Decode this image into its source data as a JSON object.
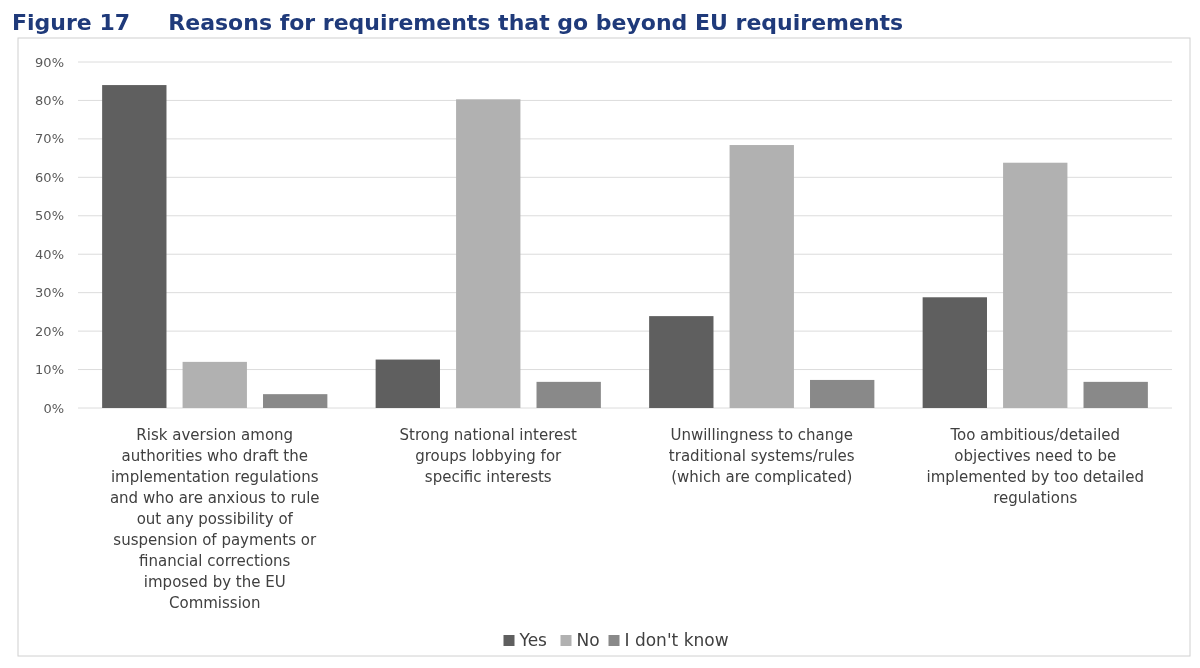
{
  "chart_data": {
    "type": "bar",
    "title": "Figure 17     Reasons for requirements that go beyond EU requirements",
    "categories": [
      "Risk aversion among authorities who draft the implementation regulations and who are anxious to rule out any possibility of suspension of payments or financial corrections imposed by the EU Commission",
      "Strong national interest groups lobbying for specific interests",
      "Unwillingness to change traditional systems/rules (which are complicated)",
      "Too ambitious/detailed objectives need to be implemented by too detailed regulations"
    ],
    "series": [
      {
        "name": "Yes",
        "color": "#5f5f5f",
        "values": [
          84.0,
          12.6,
          23.9,
          28.8
        ]
      },
      {
        "name": "No",
        "color": "#b1b1b1",
        "values": [
          12.0,
          80.3,
          68.4,
          63.8
        ]
      },
      {
        "name": "I don't know",
        "color": "#898989",
        "values": [
          3.6,
          6.8,
          7.3,
          6.8
        ]
      }
    ],
    "ylim": [
      0,
      90
    ],
    "yticks": [
      {
        "value": 0,
        "label": "0%"
      },
      {
        "value": 10,
        "label": "10%"
      },
      {
        "value": 20,
        "label": "20%"
      },
      {
        "value": 30,
        "label": "30%"
      },
      {
        "value": 40,
        "label": "40%"
      },
      {
        "value": 50,
        "label": "50%"
      },
      {
        "value": 60,
        "label": "60%"
      },
      {
        "value": 70,
        "label": "70%"
      },
      {
        "value": 80,
        "label": "80%"
      },
      {
        "value": 90,
        "label": "90%"
      }
    ],
    "grid": "y",
    "legend": "bottom"
  }
}
